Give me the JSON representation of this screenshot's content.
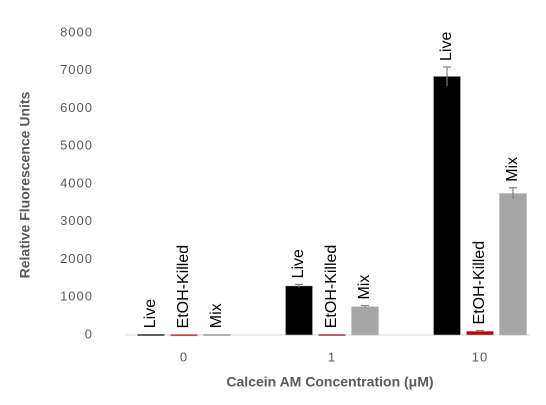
{
  "chart_data": {
    "type": "bar",
    "x_label": "Calcein AM Concentration (μM)",
    "y_label": "Relative Fluorescence Units",
    "categories": [
      "0",
      "1",
      "10"
    ],
    "series": [
      {
        "name": "Live",
        "color": "#000000",
        "values": [
          20,
          1300,
          6850
        ],
        "errors": [
          0,
          40,
          250
        ]
      },
      {
        "name": "EtOH-Killed",
        "color": "#c00000",
        "values": [
          15,
          20,
          100
        ],
        "errors": [
          0,
          0,
          20
        ]
      },
      {
        "name": "Mix",
        "color": "#a6a6a6",
        "values": [
          20,
          750,
          3750
        ],
        "errors": [
          0,
          30,
          150
        ]
      }
    ],
    "ylim": [
      0,
      8000
    ],
    "yticks": [
      0,
      1000,
      2000,
      3000,
      4000,
      5000,
      6000,
      7000,
      8000
    ],
    "grid": false
  }
}
